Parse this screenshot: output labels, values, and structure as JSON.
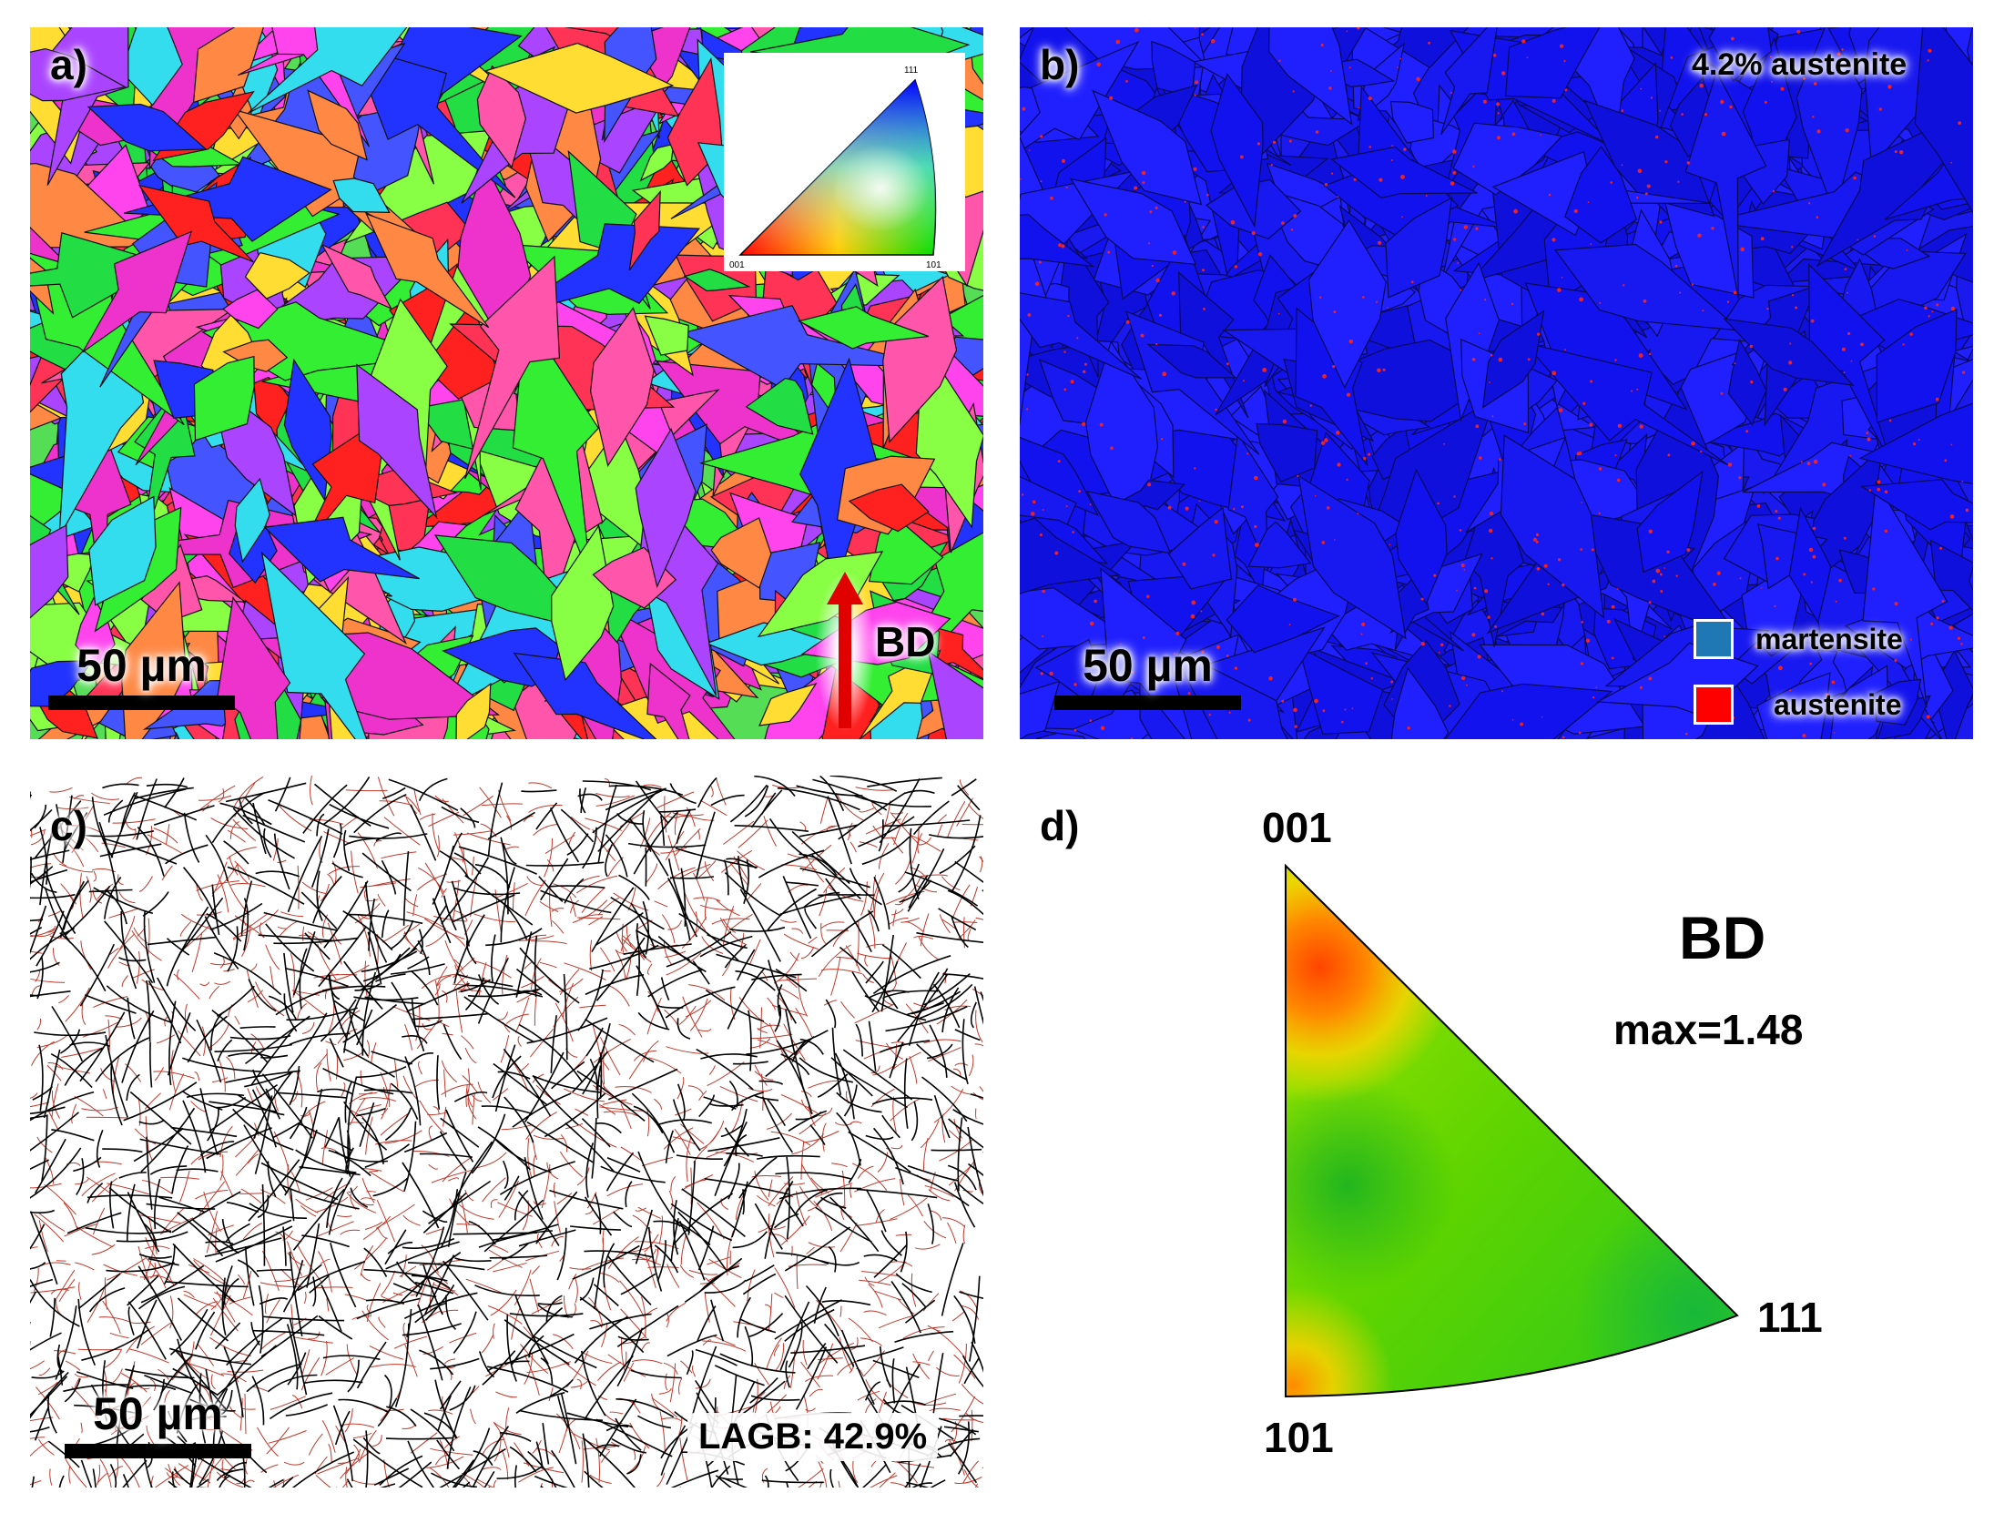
{
  "panel_a": {
    "label": "a)",
    "scale_text": "50 µm",
    "bd_label": "BD",
    "legend": {
      "corner_001": "001",
      "corner_101": "101",
      "corner_111": "111"
    }
  },
  "panel_b": {
    "label": "b)",
    "austenite_fraction": "4.2% austenite",
    "scale_text": "50 µm",
    "legend": [
      {
        "name": "martensite",
        "color": "#1f77b4"
      },
      {
        "name": "austenite",
        "color": "#ff0000"
      }
    ]
  },
  "panel_c": {
    "label": "c)",
    "scale_text": "50 µm",
    "lagb": "LAGB: 42.9%"
  },
  "panel_d": {
    "label": "d)",
    "corner_001": "001",
    "corner_101": "101",
    "corner_111": "111",
    "direction": "BD",
    "max_text": "max=1.48"
  },
  "colors": {
    "martensite_map": "#1a1aee",
    "hagb": "#000000",
    "lagb": "#c0392b"
  }
}
